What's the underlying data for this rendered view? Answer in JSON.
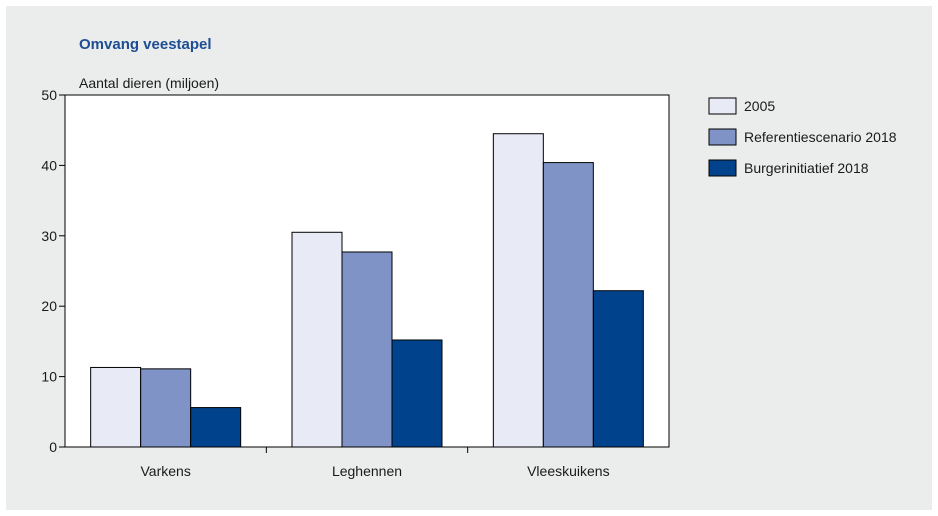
{
  "chart_data": {
    "type": "bar",
    "title": "Omvang veestapel",
    "ylabel": "Aantal dieren (miljoen)",
    "xlabel": "",
    "ylim": [
      0,
      50
    ],
    "yticks": [
      "0",
      "10",
      "20",
      "30",
      "40",
      "50"
    ],
    "categories": [
      "Varkens",
      "Leghennen",
      "Vleeskuikens"
    ],
    "series": [
      {
        "name": "2005",
        "color": "#e8eaf5",
        "values": [
          11.3,
          30.5,
          44.5
        ]
      },
      {
        "name": "Referentiescenario 2018",
        "color": "#7f93c6",
        "values": [
          11.1,
          27.7,
          40.4
        ]
      },
      {
        "name": "Burgerinitiatief 2018",
        "color": "#00428c",
        "values": [
          5.6,
          15.2,
          22.2
        ]
      }
    ],
    "legend_position": "right",
    "grid": false
  }
}
